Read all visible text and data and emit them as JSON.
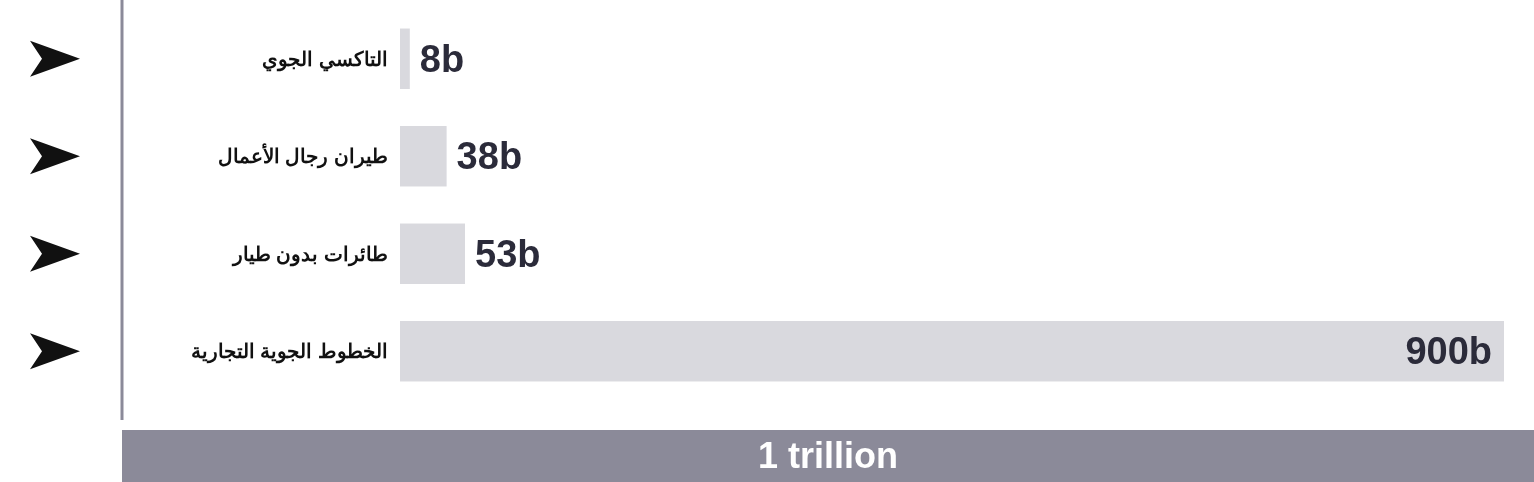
{
  "chart_data": {
    "type": "bar",
    "orientation": "horizontal",
    "categories": [
      "التاكسي الجوي",
      "طيران رجال الأعمال",
      "طائرات بدون طيار",
      "الخطوط الجوية التجارية"
    ],
    "values": [
      8,
      38,
      53,
      900
    ],
    "value_labels": [
      "8b",
      "38b",
      "53b",
      "900b"
    ],
    "color": "#d9d9de",
    "annotations": [
      "1 trillion"
    ]
  }
}
